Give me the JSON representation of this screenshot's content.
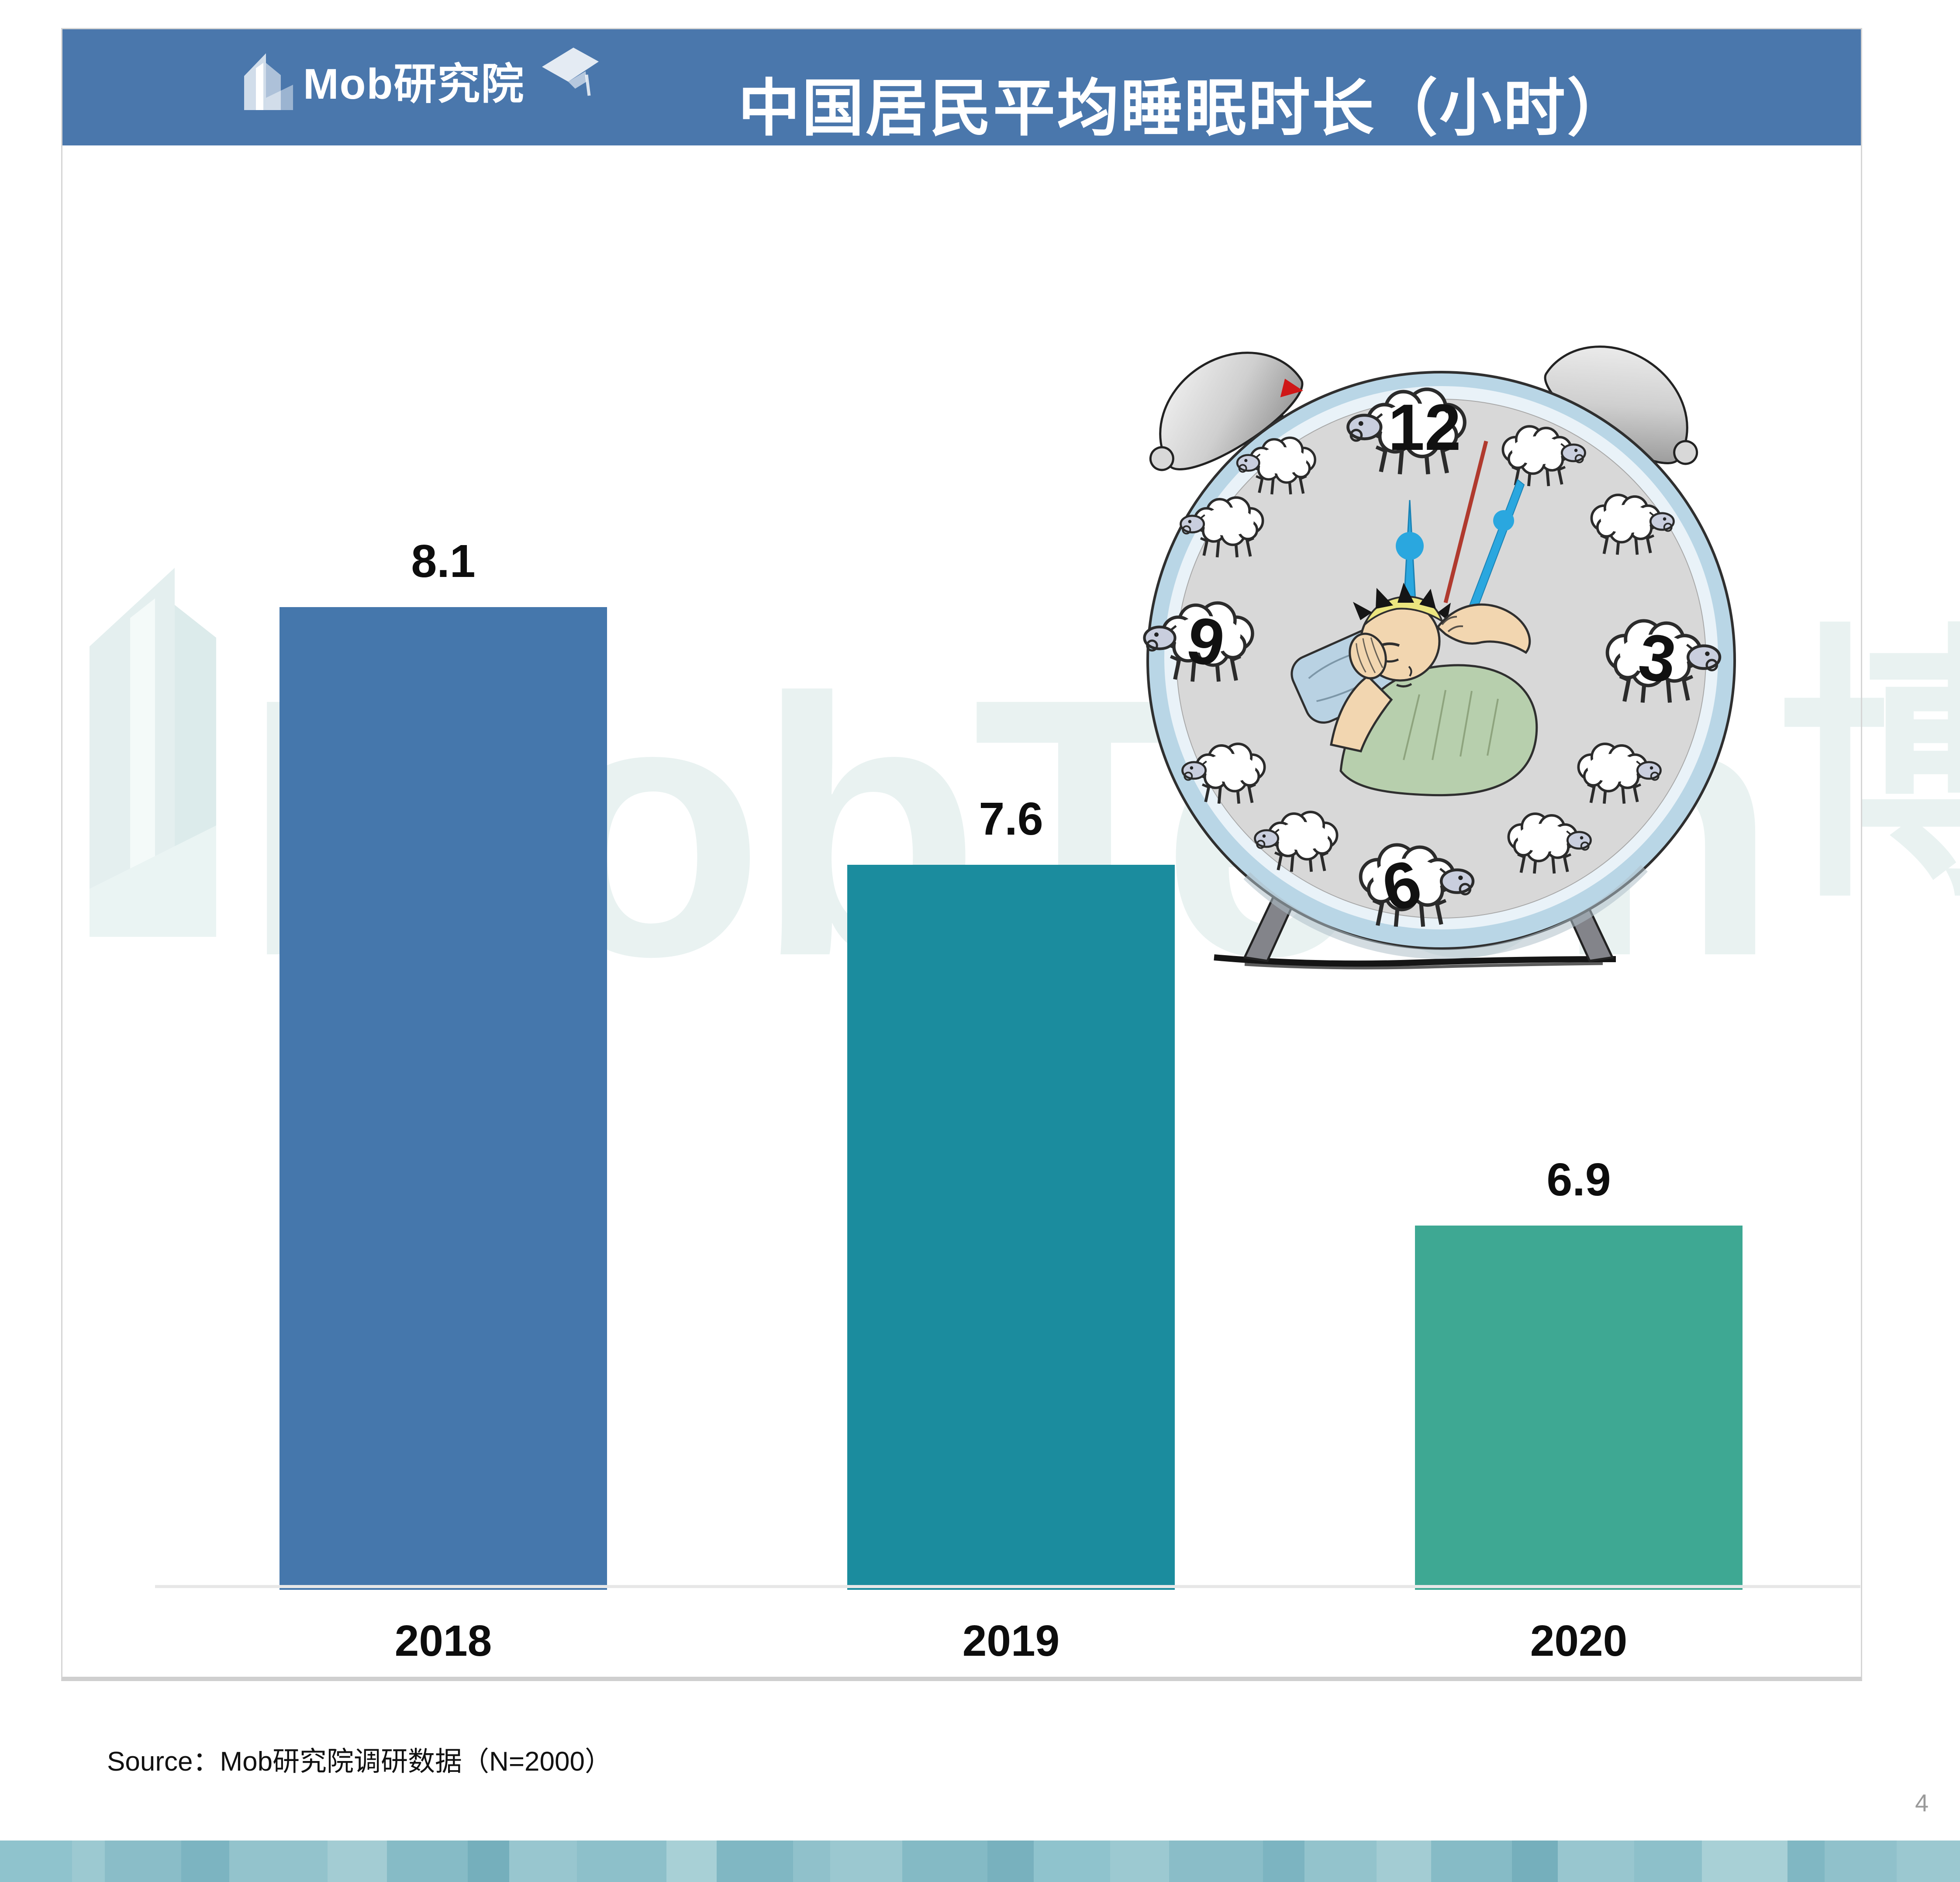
{
  "header": {
    "logo_text": "Mob研究院",
    "title": "中国居民平均睡眠时长（小时）"
  },
  "chart_data": {
    "type": "bar",
    "title": "中国居民平均睡眠时长（小时）",
    "categories": [
      "2018",
      "2019",
      "2020"
    ],
    "values": [
      8.1,
      7.6,
      6.9
    ],
    "data_labels": [
      "8.1",
      "7.6",
      "6.9"
    ],
    "bar_colors": [
      "#4577ac",
      "#1b8c9e",
      "#3ea893"
    ],
    "xlabel": "",
    "ylabel": "",
    "ylim": [
      6.2,
      8.4
    ],
    "grid": false,
    "legend": "none"
  },
  "illustration": {
    "description": "alarm-clock-with-sleeping-person-and-sheep",
    "clock_numbers": [
      "12",
      "3",
      "6",
      "9"
    ]
  },
  "watermark": {
    "text": "MobTech",
    "cn_char": "博"
  },
  "footer": {
    "source": "Source：Mob研究院调研数据（N=2000）",
    "page_number": "4"
  },
  "colors": {
    "header_bg": "#4a77ac",
    "watermark": "#e9f2f1",
    "axis_line": "#e7e7e7",
    "panel_border": "#d5d5d5",
    "strip": [
      "#8fc3cd",
      "#9cc9d1",
      "#8abdc8",
      "#7cb4c1",
      "#93c3cc",
      "#a3ccd3",
      "#86bbc6",
      "#75afbc",
      "#98c6cf",
      "#8dc0ca",
      "#a8d0d6",
      "#80b7c3",
      "#90c1cb",
      "#9bc8d0",
      "#84bac5",
      "#78b1be"
    ]
  }
}
